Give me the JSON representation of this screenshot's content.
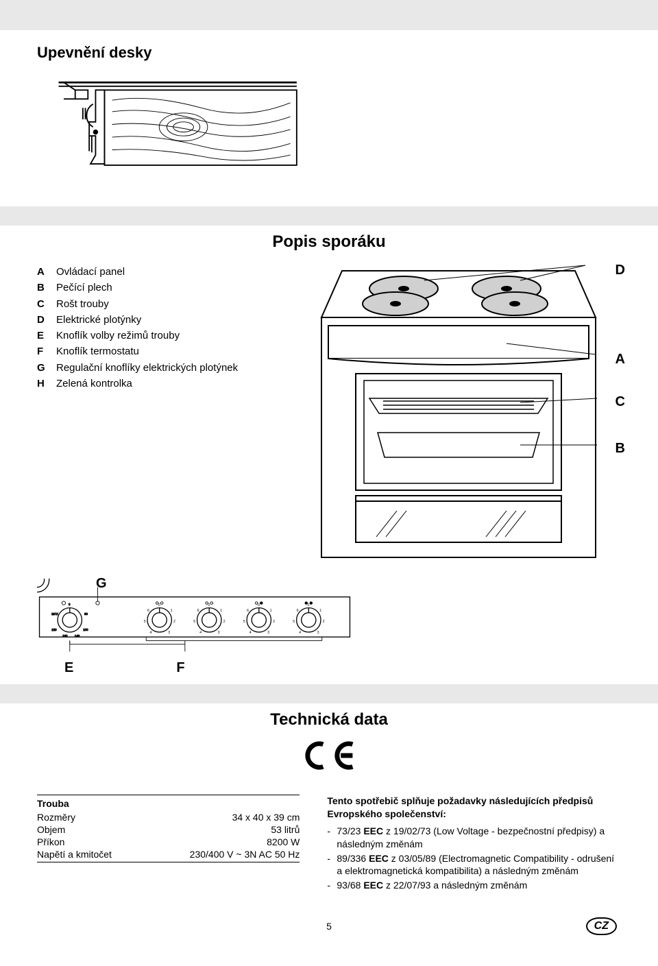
{
  "title_main": "Upevnění desky",
  "title_popis": "Popis sporáku",
  "title_tech": "Technická data",
  "legend": {
    "A": "Ovládací panel",
    "B": "Pečící plech",
    "C": "Rošt trouby",
    "D": "Elektrické plotýnky",
    "E": "Knoflík volby režimů trouby",
    "F": "Knoflík termostatu",
    "G": "Regulační knoflíky elektrických plotýnek",
    "H": "Zelená kontrolka"
  },
  "diagram_labels": {
    "D": "D",
    "A": "A",
    "C": "C",
    "B": "B",
    "G": "G",
    "E": "E",
    "F": "F"
  },
  "tech_left": {
    "hdr": "Trouba",
    "rows": [
      {
        "k": "Rozměry",
        "v": "34 x 40 x 39  cm"
      },
      {
        "k": "Objem",
        "v": "53 litrů"
      },
      {
        "k": "Příkon",
        "v": "8200 W"
      },
      {
        "k": "Napětí a kmitočet",
        "v": "230/400 V ~ 3N AC 50 Hz"
      }
    ]
  },
  "tech_right": {
    "hdr": "Tento spotřebič splňuje požadavky následujících předpisů Evropského společenství:",
    "items": [
      "73/23 EEC z 19/02/73  (Low Voltage - bezpečnostní předpisy) a následným změnám",
      "89/336 EEC z 03/05/89 (Electromagnetic Compatibility - odrušení a elektromagnetická kompatibilita) a následným změnám",
      "93/68 EEC z 22/07/93 a následným změnám"
    ],
    "bold_tokens": [
      "EEC",
      "EEC",
      "EEC"
    ]
  },
  "footer": {
    "page": "5",
    "lang": "CZ"
  },
  "panel": {
    "knob_ticks": [
      "0",
      "1",
      "2",
      "3",
      "4",
      "5",
      "6"
    ],
    "temp_ticks": [
      "0",
      "MAX",
      "60",
      "100",
      "140",
      "180",
      "220"
    ]
  },
  "colors": {
    "gray": "#e8e8e8",
    "black": "#000000",
    "white": "#ffffff"
  }
}
